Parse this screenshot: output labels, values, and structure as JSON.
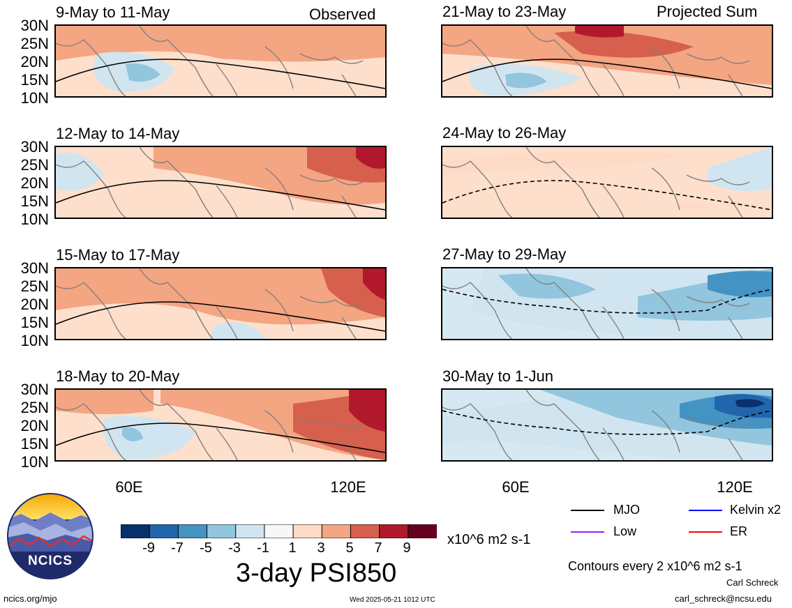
{
  "header": {
    "left_label": "Observed",
    "right_label": "Projected Sum"
  },
  "panels": [
    {
      "title": "9-May to 11-May"
    },
    {
      "title": "12-May to 14-May"
    },
    {
      "title": "15-May to 17-May"
    },
    {
      "title": "18-May to 20-May"
    },
    {
      "title": "21-May to 23-May"
    },
    {
      "title": "24-May to 26-May"
    },
    {
      "title": "27-May to 29-May"
    },
    {
      "title": "30-May to 1-Jun"
    }
  ],
  "axes": {
    "lat_labels": [
      "30N",
      "25N",
      "20N",
      "15N",
      "10N"
    ],
    "lon_labels": [
      "60E",
      "120E"
    ]
  },
  "colorbar": {
    "ticks": [
      "-9",
      "-7",
      "-5",
      "-3",
      "-1",
      "1",
      "3",
      "5",
      "7",
      "9"
    ],
    "unit": "x10^6 m2 s-1",
    "title": "3-day PSI850",
    "colors": [
      "#08306b",
      "#2166ac",
      "#4393c3",
      "#92c5de",
      "#d1e5f0",
      "#f7f7f7",
      "#fddbc7",
      "#f4a582",
      "#d6604d",
      "#b2182b",
      "#67001f"
    ]
  },
  "legend": {
    "items": [
      {
        "label": "MJO",
        "color": "#000000"
      },
      {
        "label": "Kelvin x2",
        "color": "#0000ff"
      },
      {
        "label": "Low",
        "color": "#a020f0"
      },
      {
        "label": "ER",
        "color": "#ff0000"
      }
    ],
    "contour_note": "Contours every 2 x10^6 m2 s-1"
  },
  "logo": {
    "text": "NCICS"
  },
  "footer": {
    "site": "ncics.org/mjo",
    "timestamp": "Wed 2025-05-21 1012 UTC",
    "author": "Carl Schreck",
    "email": "carl_schreck@ncsu.edu"
  }
}
